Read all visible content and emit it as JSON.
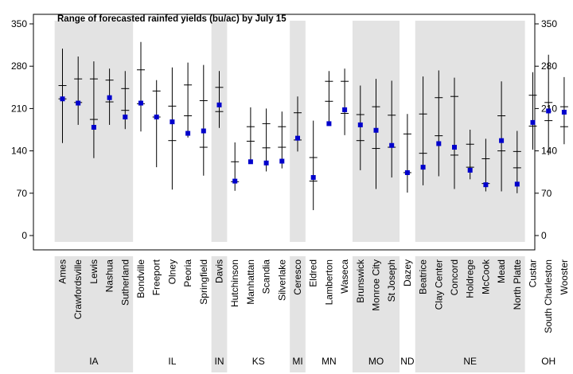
{
  "chart_data": {
    "type": "range-plot",
    "title": "Range of forecasted rainfed yields (bu/ac) by July 15",
    "ylim": [
      0,
      350
    ],
    "yticks": [
      0,
      70,
      140,
      210,
      280,
      350
    ],
    "ytick_labels": [
      "0",
      "70",
      "140",
      "210",
      "280",
      "350"
    ],
    "colors": {
      "shade": "#e3e3e3",
      "point": "#0000cc",
      "line": "#000000"
    },
    "groups": [
      {
        "label": "IA",
        "shaded": true,
        "count": 5
      },
      {
        "label": "IL",
        "shaded": false,
        "count": 5
      },
      {
        "label": "IN",
        "shaded": true,
        "count": 1
      },
      {
        "label": "KS",
        "shaded": false,
        "count": 4
      },
      {
        "label": "MI",
        "shaded": true,
        "count": 1
      },
      {
        "label": "MN",
        "shaded": false,
        "count": 3
      },
      {
        "label": "MO",
        "shaded": true,
        "count": 3
      },
      {
        "label": "ND",
        "shaded": false,
        "count": 1
      },
      {
        "label": "NE",
        "shaded": true,
        "count": 7
      },
      {
        "label": "OH",
        "shaded": false,
        "count": 3
      }
    ],
    "sites": [
      {
        "name": "Ames",
        "min": 153,
        "q1": 226,
        "q3": 248,
        "max": 309,
        "point": 226
      },
      {
        "name": "Crawfordsville",
        "min": 183,
        "q1": 220,
        "q3": 259,
        "max": 296,
        "point": 219
      },
      {
        "name": "Lewis",
        "min": 128,
        "q1": 192,
        "q3": 259,
        "max": 288,
        "point": 179
      },
      {
        "name": "Nashua",
        "min": 183,
        "q1": 221,
        "q3": 257,
        "max": 276,
        "point": 228
      },
      {
        "name": "Sutherland",
        "min": 176,
        "q1": 207,
        "q3": 243,
        "max": 272,
        "point": 196
      },
      {
        "name": "Bondville",
        "min": 172,
        "q1": 218,
        "q3": 274,
        "max": 320,
        "point": 219
      },
      {
        "name": "Freeport",
        "min": 113,
        "q1": 196,
        "q3": 239,
        "max": 257,
        "point": 196
      },
      {
        "name": "Olney",
        "min": 76,
        "q1": 157,
        "q3": 214,
        "max": 278,
        "point": 188
      },
      {
        "name": "Peoria",
        "min": 162,
        "q1": 198,
        "q3": 249,
        "max": 286,
        "point": 169
      },
      {
        "name": "Springfield",
        "min": 99,
        "q1": 146,
        "q3": 223,
        "max": 282,
        "point": 173
      },
      {
        "name": "Davis",
        "min": 178,
        "q1": 205,
        "q3": 245,
        "max": 272,
        "point": 216
      },
      {
        "name": "Hutchinson",
        "min": 74,
        "q1": 89,
        "q3": 122,
        "max": 154,
        "point": 90
      },
      {
        "name": "Manhattan",
        "min": 122,
        "q1": 156,
        "q3": 180,
        "max": 212,
        "point": 122
      },
      {
        "name": "Scandia",
        "min": 106,
        "q1": 145,
        "q3": 185,
        "max": 210,
        "point": 120
      },
      {
        "name": "Silverlake",
        "min": 111,
        "q1": 146,
        "q3": 180,
        "max": 205,
        "point": 123
      },
      {
        "name": "Ceresco",
        "min": 139,
        "q1": 158,
        "q3": 203,
        "max": 230,
        "point": 161
      },
      {
        "name": "Eldred",
        "min": 42,
        "q1": 90,
        "q3": 129,
        "max": 190,
        "point": 96
      },
      {
        "name": "Lamberton",
        "min": 184,
        "q1": 222,
        "q3": 255,
        "max": 272,
        "point": 185
      },
      {
        "name": "Waseca",
        "min": 166,
        "q1": 202,
        "q3": 255,
        "max": 276,
        "point": 208
      },
      {
        "name": "Brunswick",
        "min": 108,
        "q1": 157,
        "q3": 200,
        "max": 248,
        "point": 183
      },
      {
        "name": "Monroe City",
        "min": 77,
        "q1": 144,
        "q3": 213,
        "max": 259,
        "point": 174
      },
      {
        "name": "St Joseph",
        "min": 96,
        "q1": 146,
        "q3": 199,
        "max": 256,
        "point": 149
      },
      {
        "name": "Dazey",
        "min": 71,
        "q1": 104,
        "q3": 168,
        "max": 201,
        "point": 104
      },
      {
        "name": "Beatrice",
        "min": 83,
        "q1": 136,
        "q3": 201,
        "max": 263,
        "point": 113
      },
      {
        "name": "Clay Center",
        "min": 98,
        "q1": 165,
        "q3": 228,
        "max": 273,
        "point": 152
      },
      {
        "name": "Concord",
        "min": 77,
        "q1": 133,
        "q3": 230,
        "max": 261,
        "point": 146
      },
      {
        "name": "Holdrege",
        "min": 93,
        "q1": 113,
        "q3": 151,
        "max": 175,
        "point": 108
      },
      {
        "name": "McCook",
        "min": 73,
        "q1": 86,
        "q3": 127,
        "max": 160,
        "point": 84
      },
      {
        "name": "Mead",
        "min": 73,
        "q1": 140,
        "q3": 198,
        "max": 255,
        "point": 157
      },
      {
        "name": "North Platte",
        "min": 70,
        "q1": 112,
        "q3": 139,
        "max": 173,
        "point": 85
      },
      {
        "name": "Custar",
        "min": 142,
        "q1": 181,
        "q3": 232,
        "max": 270,
        "point": 187
      },
      {
        "name": "South Charleston",
        "min": 133,
        "q1": 190,
        "q3": 220,
        "max": 299,
        "point": 206
      },
      {
        "name": "Wooster",
        "min": 151,
        "q1": 180,
        "q3": 213,
        "max": 262,
        "point": 204
      }
    ]
  }
}
